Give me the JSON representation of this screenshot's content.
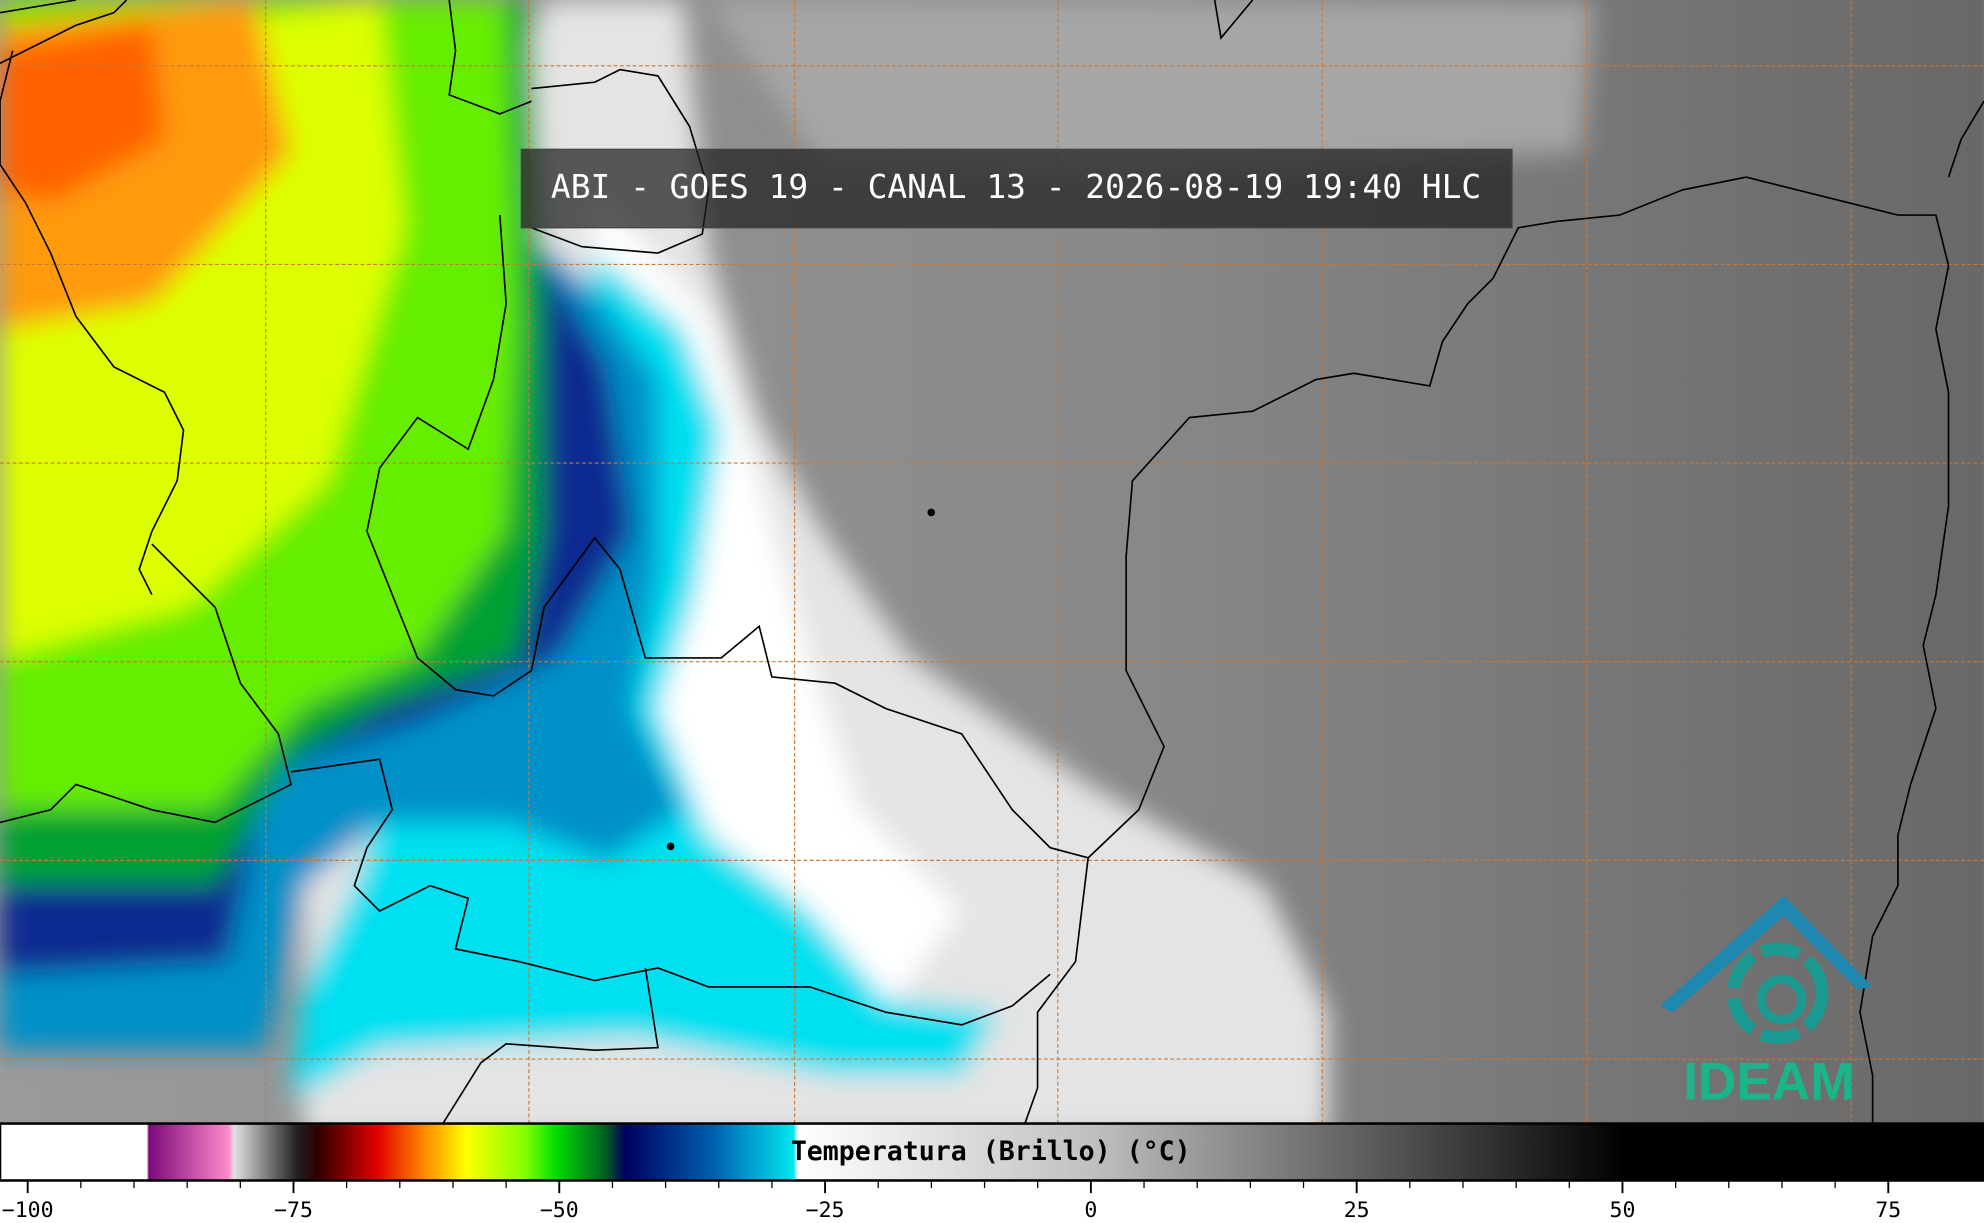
{
  "map": {
    "title": "ABI - GOES 19 - CANAL 13 - 2026-08-19 19:40 HLC",
    "logo": "IDEAM",
    "colorbar": {
      "label": "Temperatura (Brillo) (°C)",
      "lim": [
        -102.6,
        84
      ],
      "ticks": [
        {
          "value": -100,
          "label": "−100"
        },
        {
          "value": -75,
          "label": "−75"
        },
        {
          "value": -50,
          "label": "−50"
        },
        {
          "value": -25,
          "label": "−25"
        },
        0,
        25,
        50,
        75
      ]
    }
  }
}
